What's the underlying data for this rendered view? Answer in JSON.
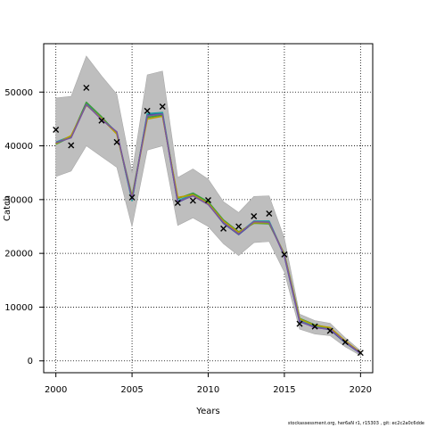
{
  "chart_data": {
    "type": "line",
    "xlabel": "Years",
    "ylabel": "Catch",
    "xlim": [
      1999.2,
      2020.8
    ],
    "ylim": [
      -2200,
      59000
    ],
    "x_ticks": [
      2000,
      2005,
      2010,
      2015,
      2020
    ],
    "y_ticks": [
      0,
      10000,
      20000,
      30000,
      40000,
      50000
    ],
    "grid": true,
    "x": [
      2000,
      2001,
      2002,
      2003,
      2004,
      2005,
      2006,
      2007,
      2008,
      2009,
      2010,
      2011,
      2012,
      2013,
      2014,
      2015,
      2016,
      2017,
      2018,
      2019,
      2020
    ],
    "band": {
      "lower": [
        34300,
        35300,
        40000,
        38000,
        36000,
        25000,
        39200,
        40000,
        25200,
        26600,
        25000,
        21800,
        19600,
        22000,
        22200,
        16500,
        5900,
        5000,
        4700,
        2600,
        1000
      ],
      "upper": [
        48900,
        49200,
        56700,
        53000,
        49600,
        35000,
        53200,
        53900,
        34100,
        35700,
        33800,
        29600,
        27600,
        30600,
        30700,
        22800,
        8700,
        7500,
        7000,
        4300,
        1900
      ]
    },
    "series": [
      {
        "color": "#1f4e9c",
        "values": [
          40500,
          41600,
          47800,
          45000,
          42400,
          30000,
          45800,
          46000,
          29500,
          30800,
          29200,
          25600,
          23500,
          25800,
          25900,
          19500,
          7300,
          6300,
          5800,
          3400,
          1400
        ]
      },
      {
        "color": "#22a0a0",
        "values": [
          40700,
          41800,
          47900,
          45200,
          42500,
          29800,
          46000,
          46200,
          29800,
          31000,
          29400,
          25900,
          23700,
          26000,
          26000,
          19700,
          7600,
          6500,
          6000,
          3500,
          1450
        ]
      },
      {
        "color": "#3c9e3c",
        "values": [
          40300,
          41700,
          48100,
          45400,
          42300,
          30600,
          45300,
          45700,
          30200,
          31200,
          29600,
          26200,
          24000,
          25600,
          25500,
          19900,
          7900,
          6700,
          6100,
          3600,
          1500
        ]
      },
      {
        "color": "#b8a000",
        "values": [
          40400,
          41900,
          47600,
          45100,
          42200,
          30400,
          45000,
          45500,
          30400,
          30900,
          29300,
          26000,
          23900,
          25700,
          25700,
          19800,
          7800,
          6600,
          6200,
          3700,
          1550
        ]
      },
      {
        "color": "#7a55a0",
        "values": [
          40600,
          41500,
          47700,
          44900,
          42600,
          30100,
          45600,
          45900,
          29600,
          30700,
          29100,
          25700,
          23600,
          25900,
          25800,
          19600,
          7400,
          6200,
          5900,
          3500,
          1420
        ]
      }
    ],
    "observed": [
      {
        "x": 2000,
        "y": 43000
      },
      {
        "x": 2001,
        "y": 40100
      },
      {
        "x": 2002,
        "y": 50800
      },
      {
        "x": 2003,
        "y": 44700
      },
      {
        "x": 2004,
        "y": 40700
      },
      {
        "x": 2005,
        "y": 30400
      },
      {
        "x": 2006,
        "y": 46500
      },
      {
        "x": 2007,
        "y": 47300
      },
      {
        "x": 2008,
        "y": 29400
      },
      {
        "x": 2009,
        "y": 29800
      },
      {
        "x": 2010,
        "y": 29900
      },
      {
        "x": 2011,
        "y": 24600
      },
      {
        "x": 2012,
        "y": 25000
      },
      {
        "x": 2013,
        "y": 26900
      },
      {
        "x": 2014,
        "y": 27400
      },
      {
        "x": 2015,
        "y": 19800
      },
      {
        "x": 2016,
        "y": 6900
      },
      {
        "x": 2017,
        "y": 6400
      },
      {
        "x": 2018,
        "y": 5600
      },
      {
        "x": 2019,
        "y": 3500
      },
      {
        "x": 2020,
        "y": 1500
      }
    ],
    "band_color": "#bebebe",
    "marker": "×"
  },
  "footer": "stockassessment.org, her6aN r1, r15303 , git: ec2c2a0c6dde"
}
